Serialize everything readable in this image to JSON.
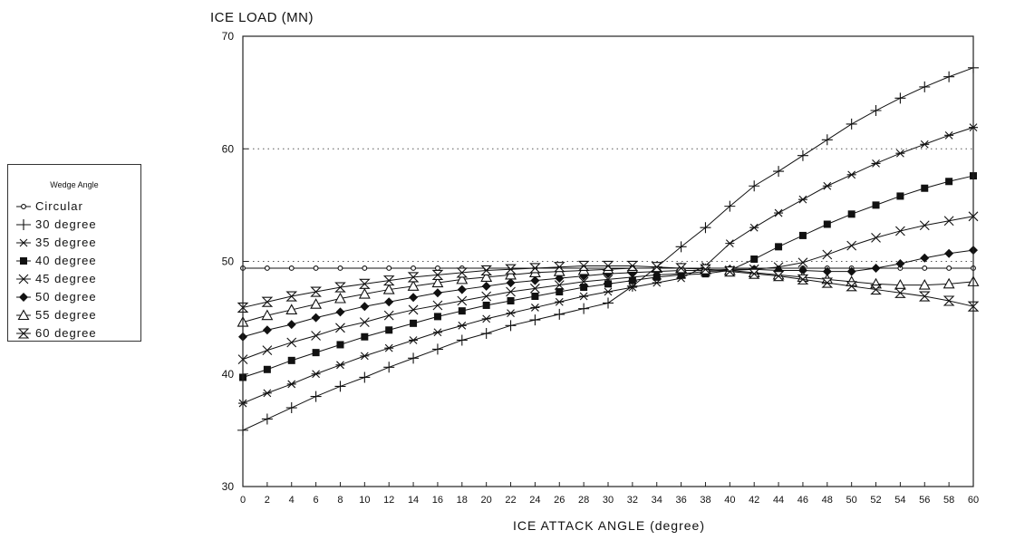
{
  "chart_data": {
    "type": "line",
    "title": "",
    "ylabel": "ICE LOAD (MN)",
    "xlabel": "ICE ATTACK ANGLE (degree)",
    "xlim": [
      0,
      60
    ],
    "ylim": [
      30,
      70
    ],
    "xticks": [
      "0",
      "2",
      "4",
      "6",
      "8",
      "10",
      "12",
      "14",
      "16",
      "18",
      "20",
      "22",
      "24",
      "26",
      "28",
      "30",
      "32",
      "34",
      "36",
      "38",
      "40",
      "42",
      "44",
      "46",
      "48",
      "50",
      "52",
      "54",
      "56",
      "58",
      "60"
    ],
    "yticks": [
      "30",
      "40",
      "50",
      "60",
      "70"
    ],
    "grid": "dotted horizontal at 50 and 60",
    "legend": {
      "title": "Wedge Angle",
      "placement": "left-outside"
    },
    "x": [
      0,
      2,
      4,
      6,
      8,
      10,
      12,
      14,
      16,
      18,
      20,
      22,
      24,
      26,
      28,
      30,
      32,
      34,
      36,
      38,
      40,
      42,
      44,
      46,
      48,
      50,
      52,
      54,
      56,
      58,
      60
    ],
    "series": [
      {
        "name": "Circular",
        "marker": "small-circle",
        "values": [
          49.4,
          49.4,
          49.4,
          49.4,
          49.4,
          49.4,
          49.4,
          49.4,
          49.4,
          49.4,
          49.4,
          49.4,
          49.4,
          49.4,
          49.4,
          49.4,
          49.4,
          49.4,
          49.4,
          49.4,
          49.4,
          49.4,
          49.4,
          49.4,
          49.4,
          49.4,
          49.4,
          49.4,
          49.4,
          49.4,
          49.4
        ]
      },
      {
        "name": "30 degree",
        "marker": "plus",
        "values": [
          35.0,
          36.0,
          37.0,
          38.0,
          38.9,
          39.7,
          40.6,
          41.4,
          42.2,
          43.0,
          43.6,
          44.3,
          44.8,
          45.3,
          45.8,
          46.3,
          47.8,
          49.5,
          51.3,
          53.0,
          54.9,
          56.7,
          58.0,
          59.4,
          60.8,
          62.2,
          63.4,
          64.5,
          65.5,
          66.4,
          67.2
        ]
      },
      {
        "name": "35 degree",
        "marker": "asterisk",
        "values": [
          37.4,
          38.3,
          39.1,
          40.0,
          40.8,
          41.6,
          42.3,
          43.0,
          43.7,
          44.3,
          44.9,
          45.4,
          45.9,
          46.4,
          46.9,
          47.3,
          47.7,
          48.1,
          48.5,
          49.6,
          51.6,
          53.0,
          54.3,
          55.5,
          56.7,
          57.7,
          58.7,
          59.6,
          60.4,
          61.2,
          61.9
        ]
      },
      {
        "name": "40 degree",
        "marker": "filled-square",
        "values": [
          39.7,
          40.4,
          41.2,
          41.9,
          42.6,
          43.3,
          43.9,
          44.5,
          45.1,
          45.6,
          46.1,
          46.5,
          46.9,
          47.3,
          47.7,
          48.0,
          48.3,
          48.6,
          48.8,
          48.9,
          49.2,
          50.2,
          51.3,
          52.3,
          53.3,
          54.2,
          55.0,
          55.8,
          56.5,
          57.1,
          57.6
        ]
      },
      {
        "name": "45 degree",
        "marker": "cross",
        "values": [
          41.3,
          42.1,
          42.8,
          43.4,
          44.1,
          44.6,
          45.2,
          45.7,
          46.1,
          46.5,
          46.9,
          47.3,
          47.6,
          47.9,
          48.2,
          48.4,
          48.6,
          48.8,
          48.9,
          49.1,
          49.2,
          49.3,
          49.5,
          49.9,
          50.6,
          51.4,
          52.1,
          52.7,
          53.2,
          53.6,
          54.0
        ]
      },
      {
        "name": "50 degree",
        "marker": "filled-diamond",
        "values": [
          43.3,
          43.9,
          44.4,
          45.0,
          45.5,
          46.0,
          46.4,
          46.8,
          47.2,
          47.5,
          47.8,
          48.1,
          48.3,
          48.5,
          48.7,
          48.9,
          49.0,
          49.1,
          49.2,
          49.2,
          49.3,
          49.3,
          49.2,
          49.2,
          49.1,
          49.1,
          49.4,
          49.8,
          50.3,
          50.7,
          51.0
        ]
      },
      {
        "name": "55 degree",
        "marker": "triangle",
        "values": [
          44.6,
          45.2,
          45.7,
          46.2,
          46.7,
          47.1,
          47.5,
          47.8,
          48.1,
          48.4,
          48.6,
          48.8,
          49.0,
          49.1,
          49.2,
          49.3,
          49.4,
          49.4,
          49.4,
          49.3,
          49.2,
          49.0,
          48.8,
          48.6,
          48.4,
          48.2,
          48.0,
          47.9,
          47.9,
          48.0,
          48.2
        ]
      },
      {
        "name": "60 degree",
        "marker": "hourglass",
        "values": [
          45.9,
          46.4,
          46.9,
          47.3,
          47.7,
          48.0,
          48.3,
          48.6,
          48.8,
          49.0,
          49.2,
          49.3,
          49.4,
          49.5,
          49.6,
          49.6,
          49.6,
          49.5,
          49.4,
          49.3,
          49.1,
          48.9,
          48.7,
          48.4,
          48.1,
          47.8,
          47.5,
          47.2,
          46.9,
          46.5,
          46.0
        ]
      }
    ]
  }
}
